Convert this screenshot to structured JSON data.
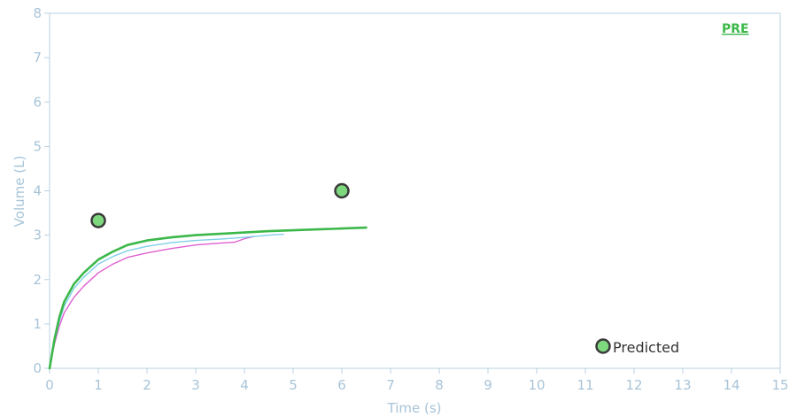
{
  "chart_data": {
    "type": "line",
    "title": "",
    "xlabel": "Time (s)",
    "ylabel": "Volume (L)",
    "xlim": [
      0,
      15
    ],
    "ylim": [
      0,
      8
    ],
    "x_ticks": [
      0,
      1,
      2,
      3,
      4,
      5,
      6,
      7,
      8,
      9,
      10,
      11,
      12,
      13,
      14,
      15
    ],
    "y_ticks": [
      0,
      1,
      2,
      3,
      4,
      5,
      6,
      7,
      8
    ],
    "grid": false,
    "series": [
      {
        "name": "",
        "color": "#e060d0",
        "x": [
          0,
          0.1,
          0.2,
          0.3,
          0.5,
          0.7,
          1.0,
          1.3,
          1.6,
          2.0,
          2.5,
          3.0,
          3.5,
          3.8,
          4.0,
          4.2
        ],
        "y": [
          0,
          0.55,
          0.95,
          1.25,
          1.6,
          1.85,
          2.15,
          2.35,
          2.5,
          2.6,
          2.7,
          2.78,
          2.82,
          2.84,
          2.92,
          2.97
        ]
      },
      {
        "name": "",
        "color": "#80d0e8",
        "x": [
          0,
          0.1,
          0.2,
          0.3,
          0.5,
          0.7,
          1.0,
          1.3,
          1.6,
          2.0,
          2.5,
          3.0,
          3.5,
          4.0,
          4.5,
          4.8
        ],
        "y": [
          0,
          0.6,
          1.05,
          1.4,
          1.8,
          2.05,
          2.35,
          2.52,
          2.65,
          2.75,
          2.83,
          2.88,
          2.91,
          2.95,
          3.0,
          3.02
        ]
      },
      {
        "name": "",
        "color": "#3cb84a",
        "x": [
          0,
          0.1,
          0.2,
          0.3,
          0.5,
          0.7,
          1.0,
          1.3,
          1.6,
          2.0,
          2.5,
          3.0,
          3.5,
          4.0,
          4.5,
          5.0,
          5.5,
          6.0,
          6.5
        ],
        "y": [
          0,
          0.65,
          1.15,
          1.5,
          1.9,
          2.15,
          2.45,
          2.63,
          2.78,
          2.88,
          2.95,
          3.0,
          3.03,
          3.06,
          3.09,
          3.11,
          3.13,
          3.15,
          3.17
        ]
      }
    ],
    "predicted_points": [
      {
        "x": 1.0,
        "y": 3.33
      },
      {
        "x": 6.0,
        "y": 4.0
      }
    ],
    "legend": {
      "label": "Predicted",
      "position": "bottom-right"
    },
    "tag": {
      "label": "PRE",
      "color": "#3cb84a",
      "position": "top-right"
    },
    "colors": {
      "axis": "#b8d0e0",
      "tick_text": "#a8c4d8",
      "predicted_fill": "#7ed87e",
      "predicted_stroke": "#3a3a3a"
    }
  }
}
